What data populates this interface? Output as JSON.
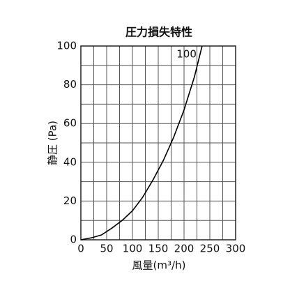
{
  "chart_data": {
    "type": "line",
    "title": "圧力損失特性",
    "x_label": "風量(m³/h)",
    "y_label": "静圧 (Pa)",
    "series": [
      {
        "name": "100",
        "color": "#000000",
        "x": [
          0,
          20,
          40,
          60,
          80,
          100,
          120,
          140,
          160,
          180,
          200,
          220,
          235
        ],
        "values": [
          0,
          1,
          2.5,
          6,
          10,
          15,
          22,
          31,
          41,
          53,
          67,
          84,
          100
        ]
      }
    ],
    "xlim": [
      0,
      300
    ],
    "ylim": [
      0,
      100
    ],
    "xticks": [
      0,
      50,
      100,
      150,
      200,
      250,
      300
    ],
    "yticks": [
      0,
      20,
      40,
      60,
      80,
      100
    ],
    "x_minor_grid": [
      25,
      75,
      125,
      175,
      225,
      275
    ],
    "y_minor_grid": [
      10,
      30,
      50,
      70,
      90
    ],
    "grid": true
  }
}
